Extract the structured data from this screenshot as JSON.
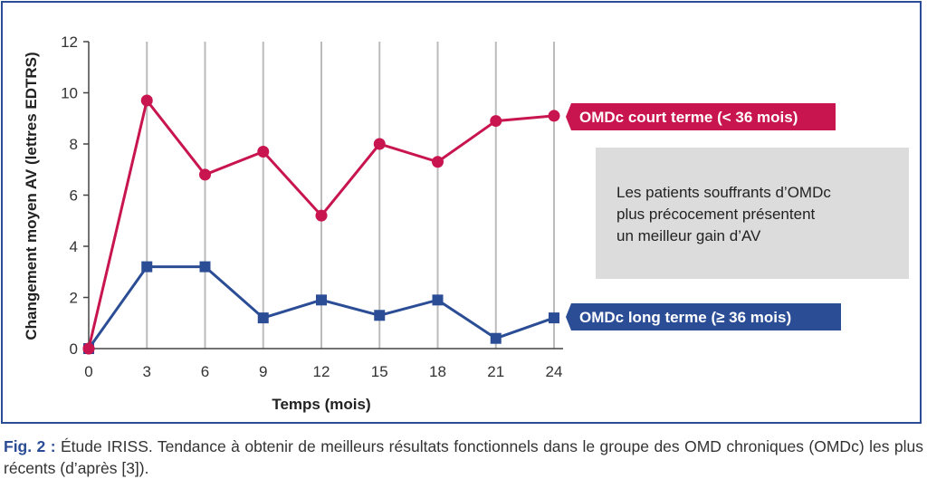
{
  "chart_data": {
    "type": "line",
    "xlabel": "Temps (mois)",
    "ylabel": "Changement moyen AV (lettres EDTRS)",
    "x": [
      0,
      3,
      6,
      9,
      12,
      15,
      18,
      21,
      24
    ],
    "ylim": [
      0,
      12
    ],
    "yticks": [
      0,
      2,
      4,
      6,
      8,
      10,
      12
    ],
    "grid": "vertical",
    "series": [
      {
        "name": "OMDc court terme (< 36 mois)",
        "values": [
          0,
          9.7,
          6.8,
          7.7,
          5.2,
          8.0,
          7.3,
          8.9,
          9.1
        ],
        "color": "#c8154f",
        "marker": "circle"
      },
      {
        "name": "OMDc long terme (≥ 36 mois)",
        "values": [
          0,
          3.2,
          3.2,
          1.2,
          1.9,
          1.3,
          1.9,
          0.4,
          1.2
        ],
        "color": "#2b4d96",
        "marker": "square"
      }
    ],
    "note": [
      "Les patients souffrants d’OMDc",
      "plus précocement présentent",
      "un meilleur gain d’AV"
    ]
  },
  "caption": {
    "fig_label": "Fig. 2 :",
    "text": " Étude IRISS. Tendance à obtenir de meilleurs résultats fonctionnels dans le groupe des OMD chroniques (OMDc) les plus récents (d’après [3])."
  },
  "colors": {
    "frame": "#2b4d96",
    "note_bg": "#dcdcdc",
    "grid": "#bbbbbb"
  }
}
